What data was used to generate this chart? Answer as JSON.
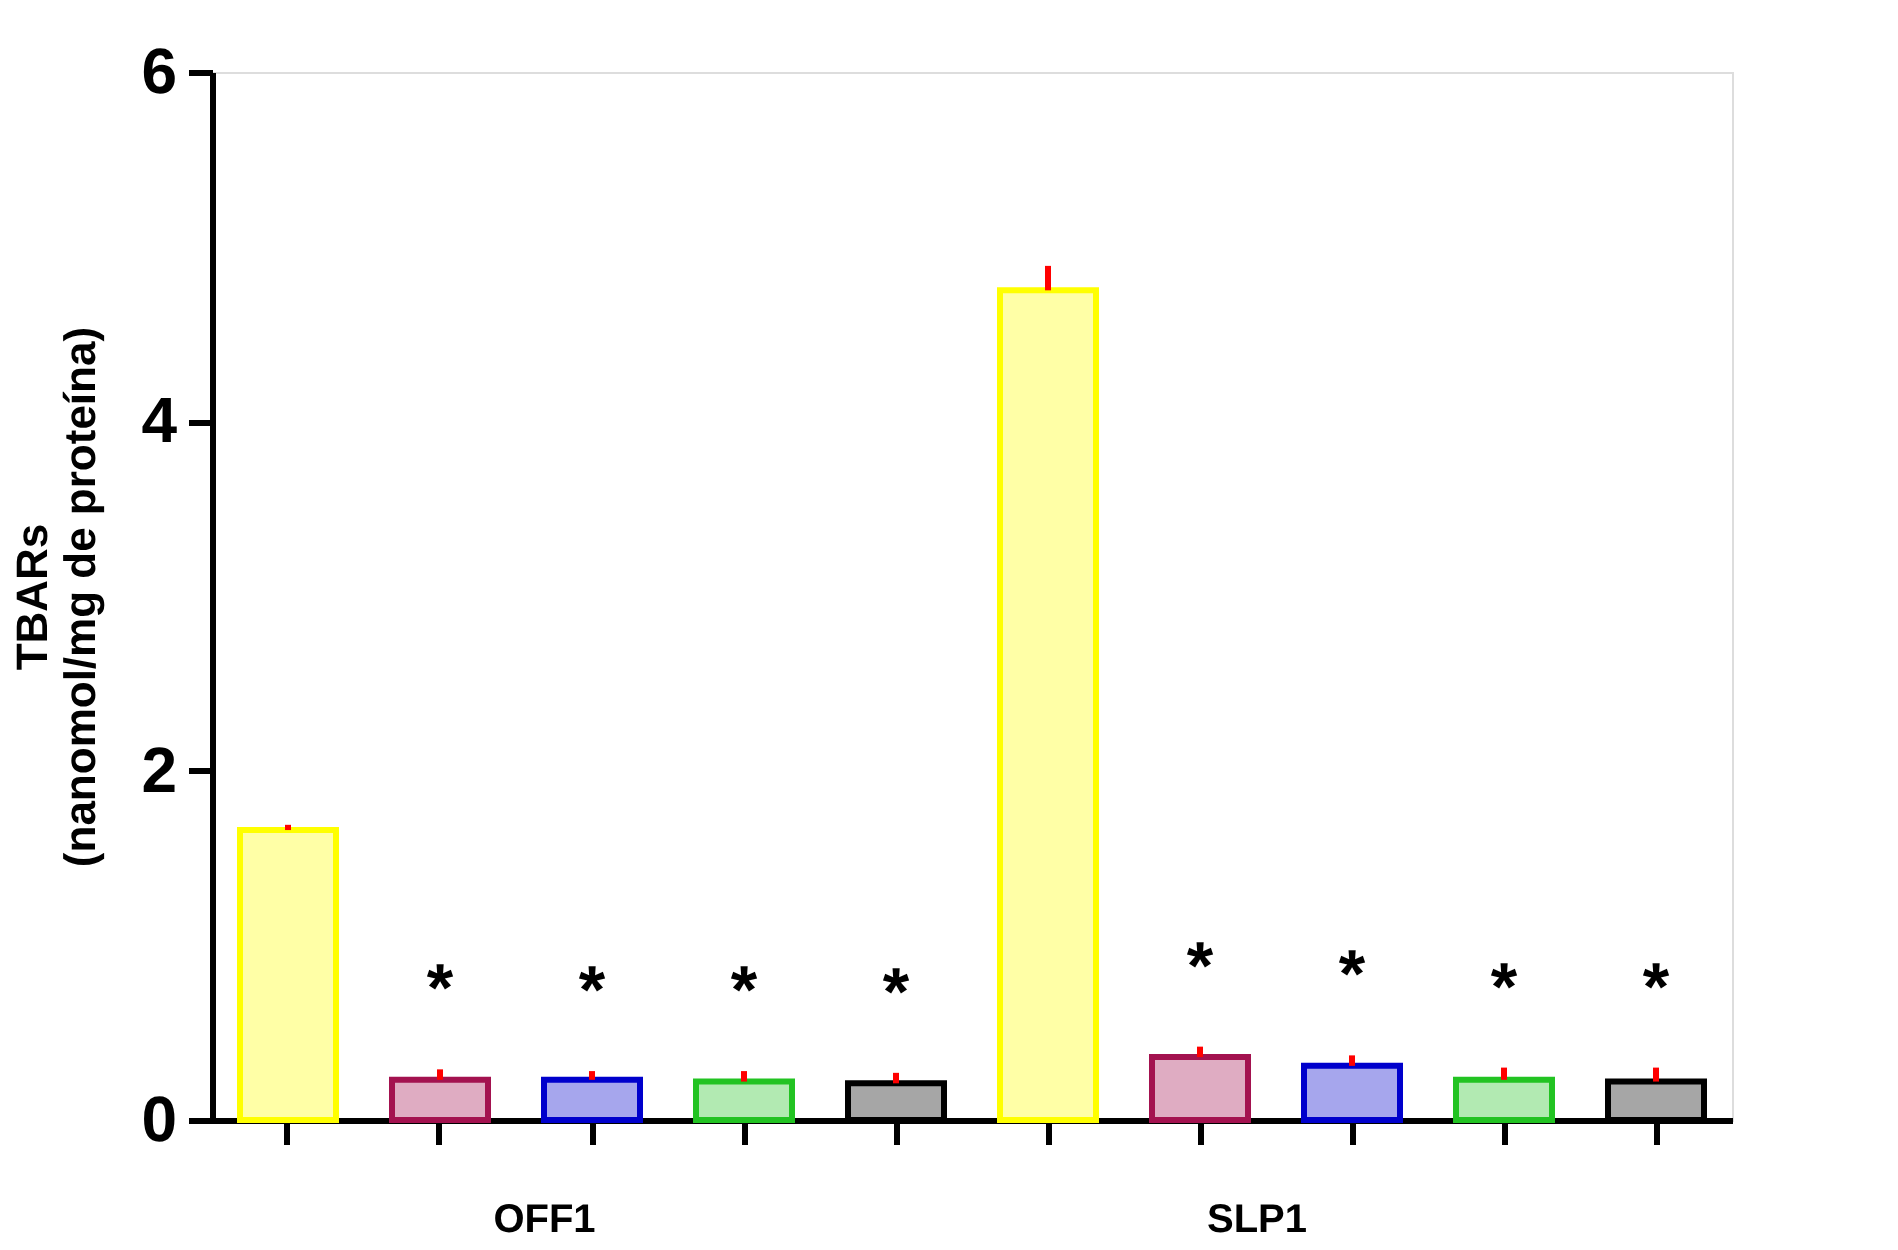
{
  "chart_data": {
    "type": "bar",
    "ylabel": "TBARs\n(nanomol/mg de proteína)",
    "categories": [
      null,
      null,
      null,
      null,
      null,
      null,
      null,
      null,
      null,
      null
    ],
    "values": [
      1.66,
      0.23,
      0.23,
      0.22,
      0.21,
      4.75,
      0.36,
      0.31,
      0.23,
      0.22
    ],
    "colors": [
      "#ffff00",
      "#a3124f",
      "#0000cc",
      "#22c322",
      "#000000",
      "#ffff00",
      "#a3124f",
      "#0000cc",
      "#22c322",
      "#000000"
    ],
    "errors": [
      [
        1.66,
        1.69
      ],
      [
        0.23,
        0.29
      ],
      [
        0.23,
        0.28
      ],
      [
        0.22,
        0.28
      ],
      [
        0.21,
        0.27
      ],
      [
        4.75,
        4.89
      ],
      [
        0.36,
        0.42
      ],
      [
        0.31,
        0.37
      ],
      [
        0.23,
        0.3
      ],
      [
        0.22,
        0.3
      ]
    ],
    "value_labels": [
      null,
      "*",
      "*",
      "*",
      "*",
      null,
      "*",
      "*",
      "*",
      "*"
    ],
    "annotations": [
      "OFF1",
      "SLP1"
    ],
    "ylim": [
      0,
      6
    ],
    "yticks": [
      0,
      2,
      4,
      6
    ],
    "tick_labels": "y",
    "grid": false
  }
}
